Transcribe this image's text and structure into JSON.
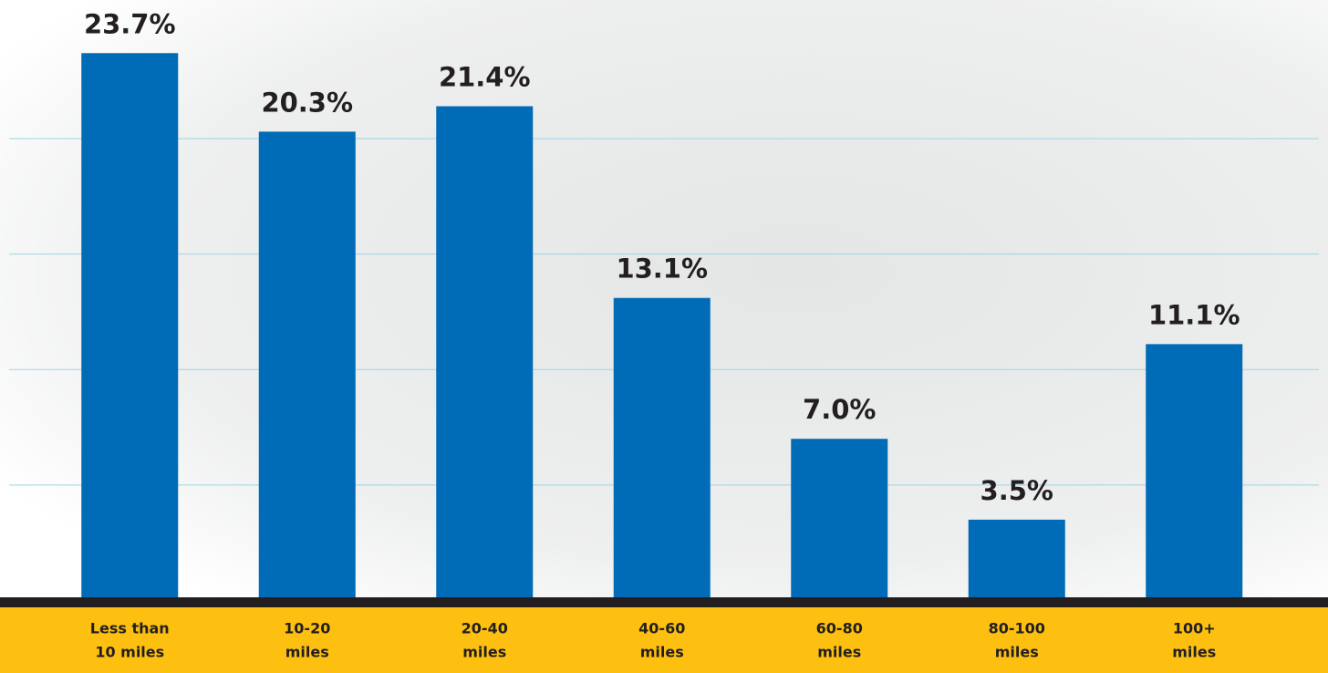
{
  "chart_data": {
    "type": "bar",
    "categories": [
      [
        "Less than",
        "10 miles"
      ],
      [
        "10-20",
        "miles"
      ],
      [
        "20-40",
        "miles"
      ],
      [
        "40-60",
        "miles"
      ],
      [
        "60-80",
        "miles"
      ],
      [
        "80-100",
        "miles"
      ],
      [
        "100+",
        "miles"
      ]
    ],
    "values": [
      23.7,
      20.3,
      21.4,
      13.1,
      7.0,
      3.5,
      11.1
    ],
    "value_labels": [
      "23.7%",
      "20.3%",
      "21.4%",
      "13.1%",
      "7.0%",
      "3.5%",
      "11.1%"
    ],
    "color": "#006bb6",
    "ylim": [
      0,
      26
    ],
    "yticks": [
      5,
      10,
      15,
      20
    ],
    "grid": true
  }
}
